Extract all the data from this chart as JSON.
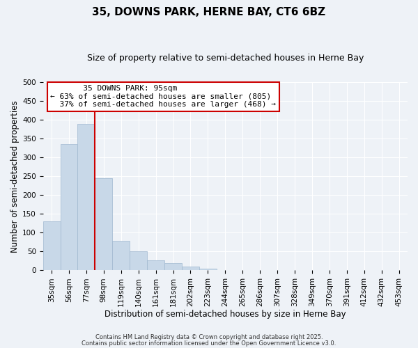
{
  "title": "35, DOWNS PARK, HERNE BAY, CT6 6BZ",
  "subtitle": "Size of property relative to semi-detached houses in Herne Bay",
  "bar_labels": [
    "35sqm",
    "56sqm",
    "77sqm",
    "98sqm",
    "119sqm",
    "140sqm",
    "161sqm",
    "181sqm",
    "202sqm",
    "223sqm",
    "244sqm",
    "265sqm",
    "286sqm",
    "307sqm",
    "328sqm",
    "349sqm",
    "370sqm",
    "391sqm",
    "412sqm",
    "432sqm",
    "453sqm"
  ],
  "bar_values": [
    130,
    335,
    390,
    245,
    78,
    50,
    27,
    20,
    10,
    5,
    0,
    0,
    0,
    0,
    0,
    0,
    0,
    0,
    1,
    0,
    0
  ],
  "bar_color": "#c8d8e8",
  "bar_edge_color": "#a0b8d0",
  "vline_color": "#cc0000",
  "xlabel": "Distribution of semi-detached houses by size in Herne Bay",
  "ylabel": "Number of semi-detached properties",
  "ylim": [
    0,
    500
  ],
  "yticks": [
    0,
    50,
    100,
    150,
    200,
    250,
    300,
    350,
    400,
    450,
    500
  ],
  "annotation_title": "35 DOWNS PARK: 95sqm",
  "annotation_line1": "← 63% of semi-detached houses are smaller (805)",
  "annotation_line2": "  37% of semi-detached houses are larger (468) →",
  "annotation_box_color": "#ffffff",
  "annotation_box_edge": "#cc0000",
  "footer1": "Contains HM Land Registry data © Crown copyright and database right 2025.",
  "footer2": "Contains public sector information licensed under the Open Government Licence v3.0.",
  "background_color": "#eef2f7",
  "title_fontsize": 11,
  "subtitle_fontsize": 9,
  "axis_label_fontsize": 8.5,
  "tick_fontsize": 7.5,
  "footer_fontsize": 6.0
}
